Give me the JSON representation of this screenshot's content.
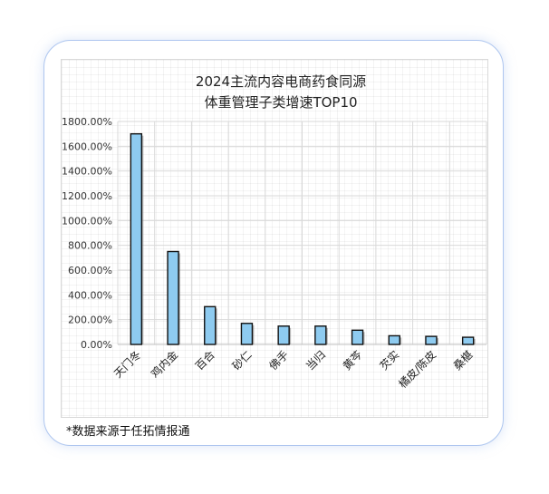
{
  "footnote": "*数据来源于任拓情报通",
  "colors": {
    "bar_fill": "#8ecbf0",
    "bar_stroke": "#111111",
    "bar_shadow": "#7f7f7f",
    "card_border": "#aec6ef",
    "grid": "#d9d9d9"
  },
  "chart_data": {
    "type": "bar",
    "title_lines": [
      "2024主流内容电商药食同源",
      "体重管理子类增速TOP10"
    ],
    "categories": [
      "天门冬",
      "鸡内金",
      "百合",
      "砂仁",
      "佛手",
      "当归",
      "黄芩",
      "芡实",
      "橘皮/陈皮",
      "桑椹"
    ],
    "values": [
      1700,
      750,
      305,
      170,
      148,
      148,
      115,
      70,
      65,
      58
    ],
    "value_unit": "%",
    "y_ticks": [
      "0.00%",
      "200.00%",
      "400.00%",
      "600.00%",
      "800.00%",
      "1000.00%",
      "1200.00%",
      "1400.00%",
      "1600.00%",
      "1800.00%"
    ],
    "ylim": [
      0,
      1800
    ],
    "grid": true,
    "legend": false,
    "xlabel": "",
    "ylabel": ""
  }
}
